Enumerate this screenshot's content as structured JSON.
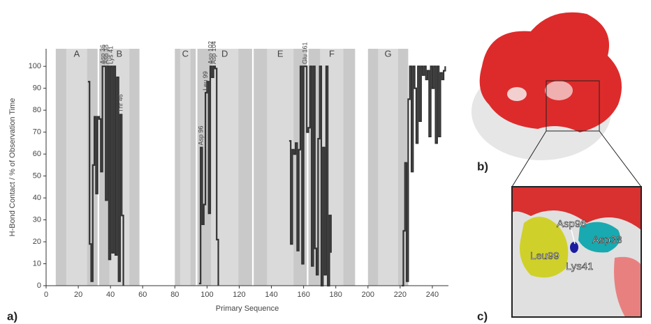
{
  "chart_data": {
    "type": "line",
    "x_label": "Primary Sequence",
    "y_label": "H-Bond Contact / % of Observation Time",
    "xlim": [
      0,
      250
    ],
    "ylim": [
      0,
      108
    ],
    "xticks": [
      0,
      20,
      40,
      60,
      80,
      100,
      120,
      140,
      160,
      180,
      200,
      220,
      240
    ],
    "yticks": [
      0,
      10,
      20,
      30,
      40,
      50,
      60,
      70,
      80,
      90,
      100
    ],
    "regions": [
      {
        "label": "A",
        "start": 6,
        "end": 32
      },
      {
        "label": "B",
        "start": 33,
        "end": 58
      },
      {
        "label": "C",
        "start": 80,
        "end": 93
      },
      {
        "label": "D",
        "start": 94,
        "end": 128
      },
      {
        "label": "E",
        "start": 129,
        "end": 162
      },
      {
        "label": "F",
        "start": 163,
        "end": 192
      },
      {
        "label": "G",
        "start": 200,
        "end": 225
      }
    ],
    "annotations": [
      "Asp 36",
      "Asp 38",
      "Lys 41",
      "Thr 46",
      "Asp 96",
      "Leu 99",
      "Asp 102",
      "Asp 104",
      "Glu 161"
    ],
    "series": [
      {
        "color": "#333333",
        "x": [
          26,
          27,
          28,
          29,
          30,
          31,
          32,
          33,
          34,
          35,
          36,
          37,
          38,
          39,
          40,
          41,
          42,
          43,
          44,
          45,
          46,
          47,
          48,
          null,
          95,
          96,
          97,
          98,
          99,
          100,
          101,
          102,
          103,
          104,
          105,
          106,
          107,
          null,
          151,
          152,
          153,
          154,
          155,
          156,
          157,
          158,
          159,
          160,
          161,
          162,
          163,
          164,
          165,
          166,
          167,
          168,
          169,
          170,
          171,
          172,
          173,
          174,
          175,
          176,
          177,
          null,
          221,
          222,
          223,
          224,
          225,
          226,
          227,
          228,
          229,
          230,
          231,
          232,
          233,
          234,
          235,
          236,
          237,
          238,
          239,
          240,
          241,
          242,
          243,
          244,
          245,
          246,
          247,
          248
        ],
        "values": [
          93,
          19,
          2,
          55,
          77,
          42,
          77,
          76,
          52,
          100,
          100,
          39,
          100,
          12,
          100,
          15,
          100,
          14,
          95,
          2,
          78,
          32,
          0,
          null,
          1,
          63,
          28,
          37,
          88,
          93,
          33,
          100,
          95,
          100,
          99,
          21,
          0,
          null,
          66,
          19,
          62,
          60,
          65,
          16,
          62,
          100,
          10,
          100,
          100,
          70,
          72,
          100,
          9,
          100,
          17,
          5,
          67,
          100,
          0,
          63,
          5,
          100,
          0,
          32,
          15,
          null,
          0,
          25,
          56,
          2,
          85,
          100,
          52,
          100,
          90,
          65,
          100,
          75,
          100,
          96,
          100,
          94,
          98,
          68,
          100,
          90,
          100,
          65,
          100,
          68,
          97,
          94,
          98,
          100
        ]
      }
    ],
    "panel_labels": [
      "a)",
      "b)",
      "c)"
    ],
    "inset_labels": [
      "Asp96",
      "Asp38",
      "Leu99",
      "Lys41"
    ]
  }
}
